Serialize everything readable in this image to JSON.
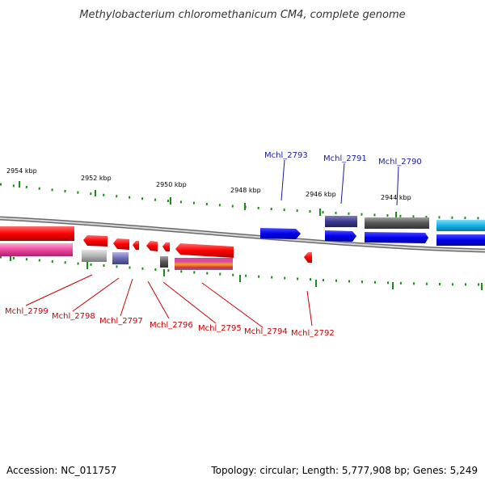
{
  "title": "Methylobacterium chloromethanicum CM4, complete genome",
  "footer": {
    "accession": "Accession: NC_011757",
    "summary": "Topology: circular; Length: 5,777,908 bp; Genes: 5,249"
  },
  "scale_labels": [
    "2954 kbp",
    "2952 kbp",
    "2950 kbp",
    "2948 kbp",
    "2946 kbp",
    "2944 kbp"
  ],
  "top_gene_labels": [
    "Mchl_2793",
    "Mchl_2791",
    "Mchl_2790"
  ],
  "bottom_gene_labels": [
    "Mchl_2799",
    "Mchl_2798",
    "Mchl_2797",
    "Mchl_2796",
    "Mchl_2795",
    "Mchl_2794",
    "Mchl_2792"
  ],
  "colors": {
    "gene_red": "#ff0000",
    "gene_blue": "#0000ee",
    "gene_navy": "#3a3a8c",
    "gene_darkgray": "#555555",
    "gene_lightgray": "#b4b4b4",
    "gene_cyan": "#17b3e6",
    "gene_magenta": "#ee4aa0",
    "gene_slate": "#6d6db3",
    "gene_orange": "#ff8c1a",
    "tick_green": "#1a8c1a",
    "backbone_gray": "#9a9a9a",
    "label_red": "#cc0000",
    "label_blue": "#1a1aa6"
  }
}
